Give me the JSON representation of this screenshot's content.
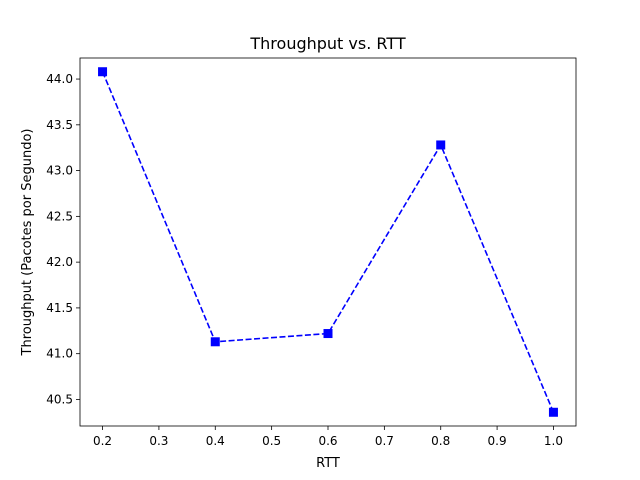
{
  "chart_data": {
    "type": "line",
    "title": "Throughput vs. RTT",
    "xlabel": "RTT",
    "ylabel": "Throughput (Pacotes por Segundo)",
    "xlim": [
      0.16,
      1.04
    ],
    "ylim": [
      40.21,
      44.23
    ],
    "xticks": [
      "0.2",
      "0.3",
      "0.4",
      "0.5",
      "0.6",
      "0.7",
      "0.8",
      "0.9",
      "1.0"
    ],
    "yticks": [
      "40.5",
      "41.0",
      "41.5",
      "42.0",
      "42.5",
      "43.0",
      "43.5",
      "44.0"
    ],
    "grid": false,
    "legend": "none",
    "series": [
      {
        "color": "#0000ff",
        "line_style": "dashed",
        "marker": "square",
        "x": [
          0.2,
          0.4,
          0.6,
          0.8,
          1.0
        ],
        "y": [
          44.08,
          41.13,
          41.22,
          43.28,
          40.36
        ]
      }
    ]
  }
}
